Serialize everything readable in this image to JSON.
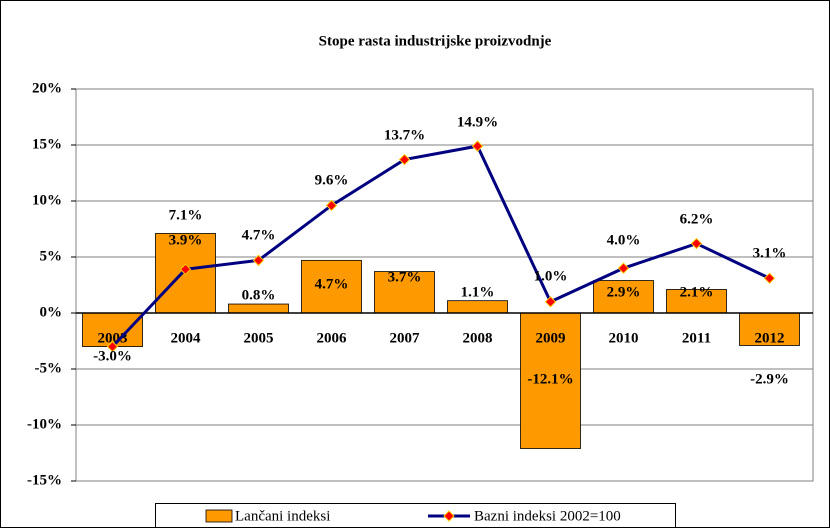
{
  "chart_data": {
    "type": "bar_line",
    "title": "Stope rasta industrijske proizvodnje",
    "categories": [
      "2003",
      "2004",
      "2005",
      "2006",
      "2007",
      "2008",
      "2009",
      "2010",
      "2011",
      "2012"
    ],
    "series": [
      {
        "name": "Lančani indeksi",
        "type": "bar",
        "color": "#ff9900",
        "values": [
          -3.0,
          7.1,
          0.8,
          4.7,
          3.7,
          1.1,
          -12.1,
          2.9,
          2.1,
          -2.9
        ],
        "value_labels": [
          "-3.0%",
          "7.1%",
          "0.8%",
          "4.7%",
          "3.7%",
          "1.1%",
          "-12.1%",
          "2.9%",
          "2.1%",
          "-2.9%"
        ]
      },
      {
        "name": "Bazni indeksi 2002=100",
        "type": "line",
        "color": "#000080",
        "marker_color": "#ff0000",
        "values": [
          -3.0,
          3.9,
          4.7,
          9.6,
          13.7,
          14.9,
          1.0,
          4.0,
          6.2,
          3.1
        ],
        "value_labels": [
          null,
          "3.9%",
          "4.7%",
          "9.6%",
          "13.7%",
          "14.9%",
          "1.0%",
          "4.0%",
          "6.2%",
          "3.1%"
        ]
      }
    ],
    "ylim": [
      -15,
      20
    ],
    "yticks": [
      {
        "value": -15,
        "label": "-15%"
      },
      {
        "value": -10,
        "label": "-10%"
      },
      {
        "value": -5,
        "label": "-5%"
      },
      {
        "value": 0,
        "label": "0%"
      },
      {
        "value": 5,
        "label": "5%"
      },
      {
        "value": 10,
        "label": "10%"
      },
      {
        "value": 15,
        "label": "15%"
      },
      {
        "value": 20,
        "label": "20%"
      }
    ],
    "grid": true,
    "legend": "bottom"
  }
}
